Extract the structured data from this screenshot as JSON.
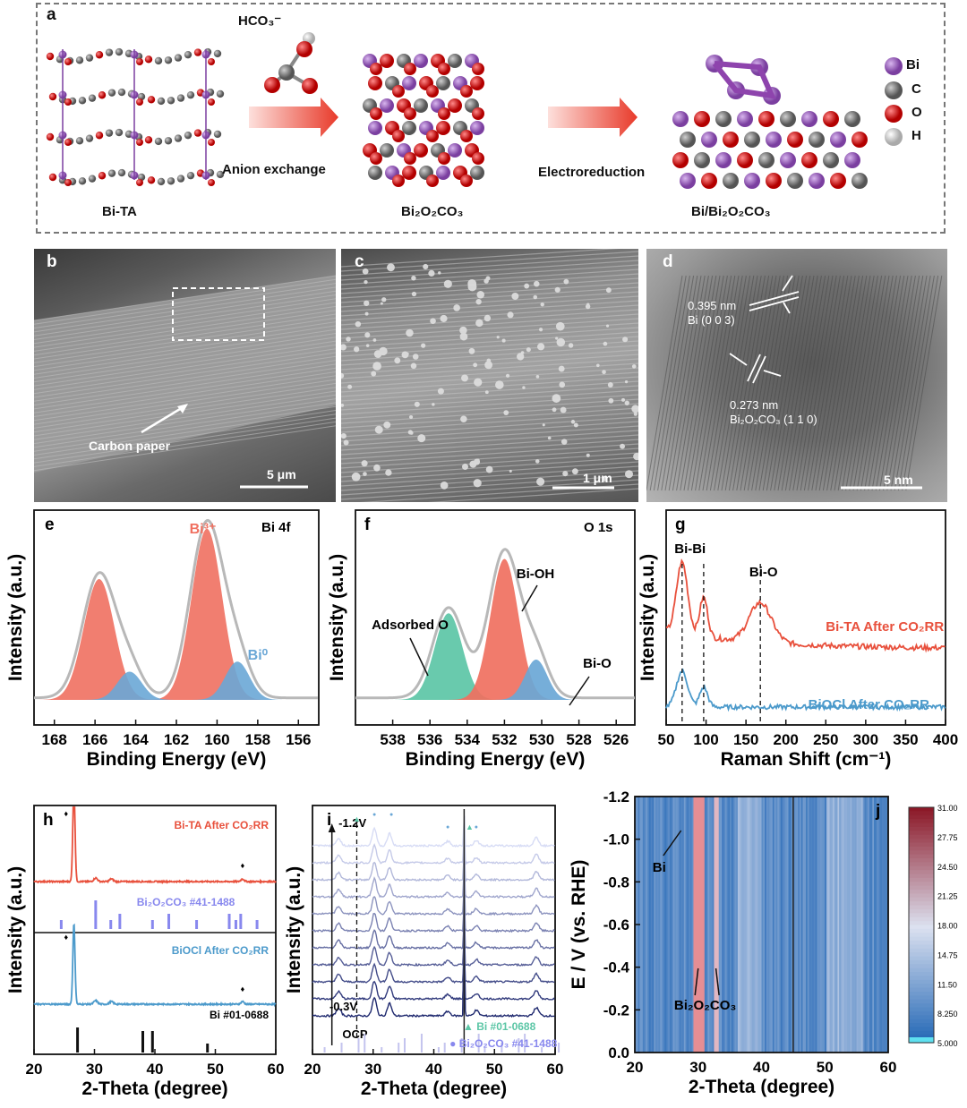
{
  "panel_a": {
    "label": "a",
    "hco3": "HCO₃⁻",
    "bi_ta": "Bi-TA",
    "anion_exchange": "Anion exchange",
    "bi2o2co3": "Bi₂O₂CO₃",
    "electroreduction": "Electroreduction",
    "bi_bi2o2co3": "Bi/Bi₂O₂CO₃",
    "legend": [
      {
        "name": "Bi",
        "color": "#9b59b6"
      },
      {
        "name": "C",
        "color": "#7f7f7f"
      },
      {
        "name": "O",
        "color": "#e02020"
      },
      {
        "name": "H",
        "color": "#e6e6e6"
      }
    ]
  },
  "panel_b": {
    "label": "b",
    "annotation": "Carbon paper",
    "scale_bar": "5 μm"
  },
  "panel_c": {
    "label": "c",
    "scale_bar": "1 μm"
  },
  "panel_d": {
    "label": "d",
    "spacing1": "0.395 nm",
    "plane1": "Bi (0 0 3)",
    "spacing2": "0.273 nm",
    "plane2": "Bi₂O₂CO₃ (1 1 0)",
    "scale_bar": "5 nm"
  },
  "chart_data": [
    {
      "id": "e",
      "type": "line",
      "title": "Bi 4f",
      "xlabel": "Binding Energy (eV)",
      "ylabel": "Intensity (a.u.)",
      "xlim": [
        169,
        155
      ],
      "x_ticks": [
        168,
        166,
        164,
        162,
        160,
        158,
        156
      ],
      "annotations": [
        "Bi³⁺",
        "Bi⁰"
      ],
      "series": [
        {
          "name": "Bi³⁺",
          "color": "#f07060",
          "peaks": [
            {
              "center": 165.8,
              "height": 0.6,
              "width": 0.75
            },
            {
              "center": 160.5,
              "height": 0.85,
              "width": 0.75
            }
          ]
        },
        {
          "name": "Bi⁰",
          "color": "#6aa7d6",
          "peaks": [
            {
              "center": 164.3,
              "height": 0.14,
              "width": 0.6
            },
            {
              "center": 159.0,
              "height": 0.19,
              "width": 0.6
            }
          ]
        }
      ]
    },
    {
      "id": "f",
      "type": "line",
      "title": "O 1s",
      "xlabel": "Binding Energy (eV)",
      "ylabel": "Intensity (a.u.)",
      "xlim": [
        540,
        525
      ],
      "x_ticks": [
        538,
        536,
        534,
        532,
        530,
        528,
        526
      ],
      "annotations": [
        "Adsorbed O",
        "Bi-OH",
        "Bi-O"
      ],
      "series": [
        {
          "name": "Adsorbed O",
          "color": "#5cc6a6",
          "peaks": [
            {
              "center": 535.0,
              "height": 0.43,
              "width": 0.75
            }
          ]
        },
        {
          "name": "Bi-OH",
          "color": "#f07060",
          "peaks": [
            {
              "center": 532.0,
              "height": 0.7,
              "width": 0.75
            }
          ]
        },
        {
          "name": "Bi-O",
          "color": "#6aa7d6",
          "peaks": [
            {
              "center": 530.3,
              "height": 0.2,
              "width": 0.6
            }
          ]
        }
      ]
    },
    {
      "id": "g",
      "type": "line",
      "xlabel": "Raman Shift (cm⁻¹)",
      "ylabel": "Intensity (a.u.)",
      "xlim": [
        50,
        400
      ],
      "x_ticks": [
        50,
        100,
        150,
        200,
        250,
        300,
        350,
        400
      ],
      "annotations": [
        "Bi-Bi",
        "Bi-O"
      ],
      "series": [
        {
          "name": "Bi-TA After CO₂RR",
          "color": "#e8503c"
        },
        {
          "name": "BiOCl After CO₂RR",
          "color": "#4c9acb"
        }
      ],
      "peak_markers": [
        70,
        97,
        168
      ]
    },
    {
      "id": "h",
      "type": "line",
      "xlabel": "2-Theta (degree)",
      "ylabel": "Intensity (a.u.)",
      "xlim": [
        20,
        60
      ],
      "x_ticks": [
        20,
        30,
        40,
        50,
        60
      ],
      "series": [
        {
          "name": "Bi-TA After CO₂RR",
          "color": "#e8503c"
        },
        {
          "name": "BiOCl After CO₂RR",
          "color": "#4c9acb"
        }
      ],
      "references": [
        {
          "name": "Bi₂O₂CO₃ #41-1488",
          "color": "#8888ee",
          "positions": [
            24.5,
            30.2,
            32.7,
            34.2,
            39.6,
            42.3,
            46.9,
            52.3,
            53.4,
            54.2,
            56.9
          ]
        },
        {
          "name": "Bi #01-0688",
          "color": "#111111",
          "positions": [
            27.2,
            38.0,
            39.6,
            48.7
          ]
        }
      ]
    },
    {
      "id": "i",
      "type": "line",
      "xlabel": "2-Theta (degree)",
      "ylabel": "Intensity (a.u.)",
      "xlim": [
        20,
        60
      ],
      "x_ticks": [
        20,
        30,
        40,
        50,
        60
      ],
      "annotations": [
        "-1.2V",
        "-0.3V",
        "OCP"
      ],
      "references": [
        {
          "name": "Bi #01-0688",
          "color": "#5cc6a6"
        },
        {
          "name": "Bi₂O₂CO₃ #41-1488",
          "color": "#8888ee"
        }
      ]
    },
    {
      "id": "j",
      "type": "heatmap",
      "xlabel": "2-Theta (degree)",
      "ylabel": "E / V (vs. RHE)",
      "xlim": [
        20,
        60
      ],
      "ylim": [
        0.0,
        -1.2
      ],
      "x_ticks": [
        20,
        30,
        40,
        50,
        60
      ],
      "y_ticks": [
        -1.2,
        -1.0,
        -0.8,
        -0.6,
        -0.4,
        -0.2,
        0.0
      ],
      "colorbar_ticks": [
        "31.00",
        "27.75",
        "24.50",
        "21.25",
        "18.00",
        "14.75",
        "11.50",
        "8.250",
        "5.000"
      ],
      "annotations": [
        "Bi",
        "Bi₂O₂CO₃"
      ]
    }
  ]
}
